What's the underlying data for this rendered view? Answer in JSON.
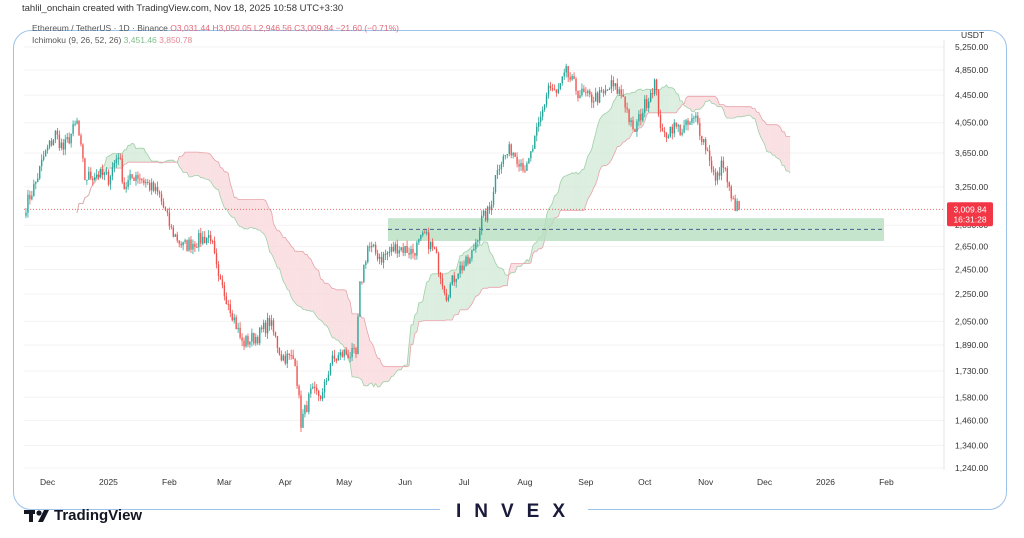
{
  "header": {
    "credit": "tahlil_onchain created with TradingView.com, Nov 18, 2025 10:58 UTC+3:30",
    "symbol": "Ethereum / TetherUS · 1D · Binance",
    "ohlc": "O3,031.44 H3,050.05 L2,946.56 C3,009.84 −21.60 (−0.71%)",
    "ichimoku_label": "Ichimoku (9, 26, 52, 26)",
    "ichimoku_v1": "3,451.46",
    "ichimoku_v2": "3,850.78"
  },
  "axis": {
    "currency": "USDT"
  },
  "price_tag": {
    "price": "3,009.84",
    "countdown": "16:31:28"
  },
  "footer": {
    "brand": "TradingView",
    "watermark": "INVEX"
  },
  "colors": {
    "bull": "#26a69a",
    "bear": "#ef5350",
    "cloud_bull": "#cfe8d4",
    "cloud_bear": "#f8d5d8",
    "zone": "#b7e0bf",
    "frame": "#9cc3ea"
  },
  "chart_data": {
    "type": "candlestick",
    "scale": "log",
    "y_ticks": [
      1240,
      1340,
      1460,
      1580,
      1730,
      1890,
      2050,
      2250,
      2450,
      2650,
      2850,
      3250,
      3650,
      4050,
      4450,
      4850,
      5250
    ],
    "y_tick_labels": [
      "1,240.00",
      "1,340.00",
      "1,460.00",
      "1,580.00",
      "1,730.00",
      "1,890.00",
      "2,050.00",
      "2,250.00",
      "2,450.00",
      "2,650.00",
      "2,850.00",
      "3,250.00",
      "3,650.00",
      "4,050.00",
      "4,450.00",
      "4,850.00",
      "5,250.00"
    ],
    "x_labels": [
      "Dec",
      "2025",
      "Feb",
      "Mar",
      "Apr",
      "May",
      "Jun",
      "Jul",
      "Aug",
      "Sep",
      "Oct",
      "Nov",
      "Dec",
      "2026",
      "Feb"
    ],
    "last_close": 3009.84,
    "support_zone": {
      "low": 2700,
      "high": 2920,
      "mid": 2810
    },
    "close_path": [
      [
        "2024-11-20",
        3050
      ],
      [
        "2024-11-25",
        3300
      ],
      [
        "2024-11-29",
        3600
      ],
      [
        "2024-12-05",
        3900
      ],
      [
        "2024-12-09",
        3700
      ],
      [
        "2024-12-16",
        4050
      ],
      [
        "2024-12-20",
        3350
      ],
      [
        "2024-12-26",
        3400
      ],
      [
        "2025-01-01",
        3350
      ],
      [
        "2025-01-06",
        3650
      ],
      [
        "2025-01-09",
        3250
      ],
      [
        "2025-01-15",
        3400
      ],
      [
        "2025-01-20",
        3300
      ],
      [
        "2025-01-27",
        3150
      ],
      [
        "2025-02-02",
        2800
      ],
      [
        "2025-02-08",
        2650
      ],
      [
        "2025-02-15",
        2700
      ],
      [
        "2025-02-22",
        2750
      ],
      [
        "2025-02-26",
        2350
      ],
      [
        "2025-03-03",
        2200
      ],
      [
        "2025-03-10",
        1900
      ],
      [
        "2025-03-18",
        1950
      ],
      [
        "2025-03-24",
        2050
      ],
      [
        "2025-03-30",
        1820
      ],
      [
        "2025-04-06",
        1800
      ],
      [
        "2025-04-09",
        1450
      ],
      [
        "2025-04-14",
        1600
      ],
      [
        "2025-04-20",
        1590
      ],
      [
        "2025-04-24",
        1780
      ],
      [
        "2025-05-01",
        1840
      ],
      [
        "2025-05-07",
        1820
      ],
      [
        "2025-05-09",
        2300
      ],
      [
        "2025-05-13",
        2650
      ],
      [
        "2025-05-20",
        2550
      ],
      [
        "2025-05-28",
        2650
      ],
      [
        "2025-06-05",
        2600
      ],
      [
        "2025-06-11",
        2750
      ],
      [
        "2025-06-16",
        2600
      ],
      [
        "2025-06-22",
        2250
      ],
      [
        "2025-06-28",
        2450
      ],
      [
        "2025-07-04",
        2520
      ],
      [
        "2025-07-10",
        2900
      ],
      [
        "2025-07-14",
        3000
      ],
      [
        "2025-07-18",
        3500
      ],
      [
        "2025-07-25",
        3700
      ],
      [
        "2025-08-02",
        3450
      ],
      [
        "2025-08-09",
        4100
      ],
      [
        "2025-08-13",
        4600
      ],
      [
        "2025-08-17",
        4450
      ],
      [
        "2025-08-22",
        4800
      ],
      [
        "2025-08-28",
        4500
      ],
      [
        "2025-09-03",
        4400
      ],
      [
        "2025-09-10",
        4450
      ],
      [
        "2025-09-14",
        4600
      ],
      [
        "2025-09-20",
        4450
      ],
      [
        "2025-09-25",
        3900
      ],
      [
        "2025-10-01",
        4300
      ],
      [
        "2025-10-06",
        4650
      ],
      [
        "2025-10-10",
        3850
      ],
      [
        "2025-10-15",
        4000
      ],
      [
        "2025-10-20",
        3950
      ],
      [
        "2025-10-27",
        4100
      ],
      [
        "2025-11-03",
        3600
      ],
      [
        "2025-11-06",
        3300
      ],
      [
        "2025-11-10",
        3550
      ],
      [
        "2025-11-14",
        3100
      ],
      [
        "2025-11-18",
        3010
      ]
    ]
  }
}
